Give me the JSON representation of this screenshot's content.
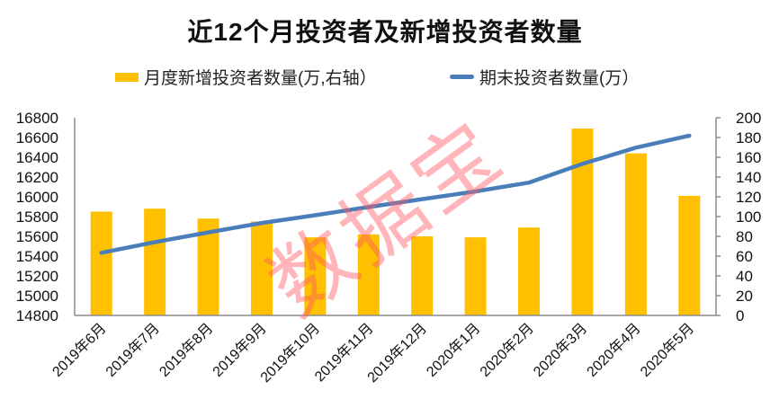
{
  "chart_data": {
    "type": "bar+line",
    "title": "近12个月投资者及新增投资者数量",
    "categories": [
      "2019年6月",
      "2019年7月",
      "2019年8月",
      "2019年9月",
      "2019年10月",
      "2019年11月",
      "2019年12月",
      "2020年1月",
      "2020年2月",
      "2020年3月",
      "2020年4月",
      "2020年5月"
    ],
    "series": [
      {
        "name": "月度新增投资者数量(万,右轴）",
        "type": "bar",
        "axis": "right",
        "color": "#FFC000",
        "values": [
          105,
          108,
          98,
          95,
          79,
          82,
          80,
          79,
          89,
          189,
          164,
          121
        ]
      },
      {
        "name": "期末投资者数量(万）",
        "type": "line",
        "axis": "left",
        "color": "#4A7EBB",
        "values": [
          15434,
          15542,
          15640,
          15735,
          15814,
          15896,
          15976,
          16055,
          16144,
          16333,
          16497,
          16618
        ]
      }
    ],
    "left_axis": {
      "min": 14800,
      "max": 16800,
      "step": 200,
      "ticks": [
        "16800",
        "16600",
        "16400",
        "16200",
        "16000",
        "15800",
        "15600",
        "15400",
        "15200",
        "15000",
        "14800"
      ]
    },
    "right_axis": {
      "min": 0,
      "max": 200,
      "step": 20,
      "ticks": [
        "200",
        "180",
        "160",
        "140",
        "120",
        "100",
        "80",
        "60",
        "40",
        "20",
        "0"
      ]
    },
    "xlabel": "",
    "ylabel": "",
    "grid": false,
    "legend_position": "top"
  },
  "legend": {
    "bar_label": "月度新增投资者数量(万,右轴）",
    "line_label": "期末投资者数量(万）"
  },
  "watermark": "数据宝"
}
